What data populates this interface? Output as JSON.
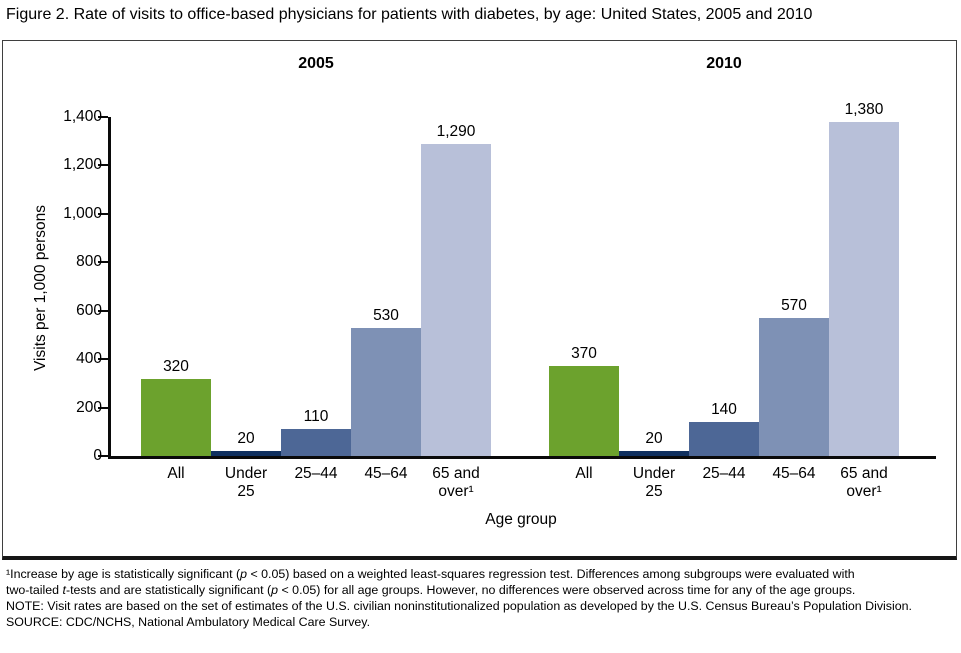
{
  "title": "Figure 2. Rate of visits to office-based physicians for patients with diabetes, by age: United States, 2005 and 2010",
  "chart_data": {
    "type": "bar",
    "title": "Figure 2. Rate of visits to office-based physicians for patients with diabetes, by age: United States, 2005 and 2010",
    "categories": [
      "All",
      "Under 25",
      "25–44",
      "45–64",
      "65 and over¹"
    ],
    "category_lines": [
      [
        "All"
      ],
      [
        "Under",
        "25"
      ],
      [
        "25–44"
      ],
      [
        "45–64"
      ],
      [
        "65 and",
        "over¹"
      ]
    ],
    "series": [
      {
        "name": "2005",
        "values": [
          320,
          20,
          110,
          530,
          1290
        ],
        "value_labels": [
          "320",
          "20",
          "110",
          "530",
          "1,290"
        ]
      },
      {
        "name": "2010",
        "values": [
          370,
          20,
          140,
          570,
          1380
        ],
        "value_labels": [
          "370",
          "20",
          "140",
          "570",
          "1,380"
        ]
      }
    ],
    "xlabel": "Age group",
    "ylabel": "Visits per 1,000 persons",
    "ylim": [
      0,
      1400
    ],
    "ytick_step": 200,
    "ytick_labels": [
      "0",
      "200",
      "400",
      "600",
      "800",
      "1,000",
      "1,200",
      "1,400"
    ],
    "bar_colors": [
      "#6ca22d",
      "#10305f",
      "#4d6796",
      "#7e91b5",
      "#b8c0d9"
    ],
    "grid": false,
    "legend": "none"
  },
  "footnotes": {
    "lines": [
      [
        {
          "t": "¹Increase by age is statistically significant ("
        },
        {
          "t": "p",
          "i": true
        },
        {
          "t": " < 0.05) based on a weighted least-squares regression test. Differences among subgroups were evaluated with"
        }
      ],
      [
        {
          "t": "two-tailed "
        },
        {
          "t": "t",
          "i": true
        },
        {
          "t": "-tests and are statistically significant ("
        },
        {
          "t": "p",
          "i": true
        },
        {
          "t": " < 0.05) for all age groups. However, no differences were observed across time for any of the age groups."
        }
      ],
      [
        {
          "t": "NOTE: Visit rates are based on the set of estimates of the U.S. civilian noninstitutionalized population as developed by the U.S. Census Bureau’s Population Division."
        }
      ],
      [
        {
          "t": "SOURCE: CDC/NCHS, National Ambulatory Medical Care Survey."
        }
      ]
    ]
  }
}
